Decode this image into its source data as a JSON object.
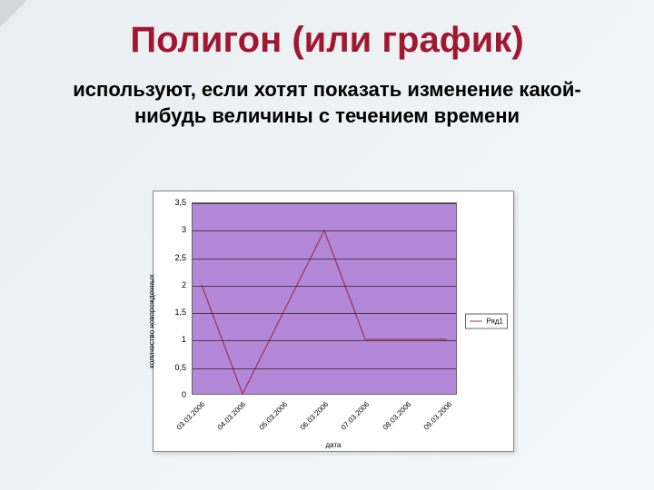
{
  "title": "Полигон (или график)",
  "subtitle": "используют, если хотят показать изменение какой-нибудь величины с течением времени",
  "chart": {
    "type": "line",
    "background_color": "#ffffff",
    "plot_background_color": "#b388d8",
    "grid_color": "#333333",
    "line_color": "#a03050",
    "line_width": 1.2,
    "y_axis_label": "количество новорожденных",
    "x_axis_label": "дата",
    "ylim": [
      0,
      3.5
    ],
    "ytick_step": 0.5,
    "y_ticks": [
      "0",
      "0,5",
      "1",
      "1,5",
      "2",
      "2,5",
      "3",
      "3,5"
    ],
    "x_labels": [
      "03.03.2006",
      "04.03.2006",
      "05.03.2006",
      "06.03.2006",
      "07.03.2006",
      "08.03.2006",
      "09.03.2006"
    ],
    "values": [
      2,
      0,
      1.5,
      3,
      1,
      1,
      1
    ],
    "legend_label": "Ряд1"
  }
}
